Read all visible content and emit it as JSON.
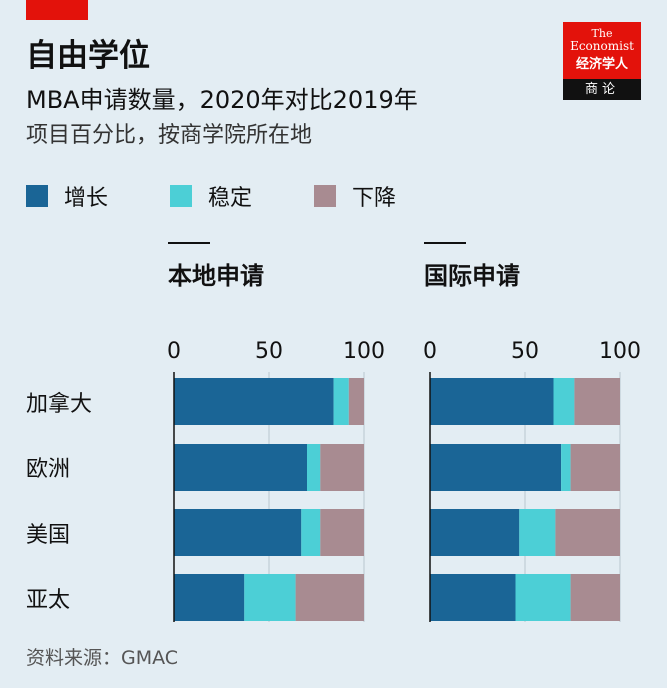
{
  "header": {
    "title": "自由学位",
    "subtitle": "MBA申请数量，2020年对比2019年",
    "subsubtitle": "项目百分比，按商学院所在地"
  },
  "logo": {
    "line1": "The",
    "line2": "Economist",
    "line3": "经济学人",
    "band": "商论"
  },
  "source": "资料来源：GMAC",
  "colors": {
    "background": "#e3edf3",
    "increase": "#1a6596",
    "stable": "#4ccfd6",
    "decrease": "#a88b91",
    "red": "#e3120b"
  },
  "chart_data": {
    "type": "bar",
    "stacked": true,
    "orientation": "horizontal",
    "categories": [
      "加拿大",
      "欧洲",
      "美国",
      "亚太"
    ],
    "xlim": [
      0,
      100
    ],
    "ticks": [
      "0",
      "50",
      "100"
    ],
    "legend": [
      {
        "key": "increase",
        "label": "增长"
      },
      {
        "key": "stable",
        "label": "稳定"
      },
      {
        "key": "decrease",
        "label": "下降"
      }
    ],
    "panels": [
      {
        "title": "本地申请",
        "series": [
          {
            "name": "增长",
            "values": [
              84,
              70,
              67,
              37
            ]
          },
          {
            "name": "稳定",
            "values": [
              8,
              7,
              10,
              27
            ]
          },
          {
            "name": "下降",
            "values": [
              8,
              23,
              23,
              36
            ]
          }
        ]
      },
      {
        "title": "国际申请",
        "series": [
          {
            "name": "增长",
            "values": [
              65,
              69,
              47,
              45
            ]
          },
          {
            "name": "稳定",
            "values": [
              11,
              5,
              19,
              29
            ]
          },
          {
            "name": "下降",
            "values": [
              24,
              26,
              34,
              26
            ]
          }
        ]
      }
    ]
  }
}
